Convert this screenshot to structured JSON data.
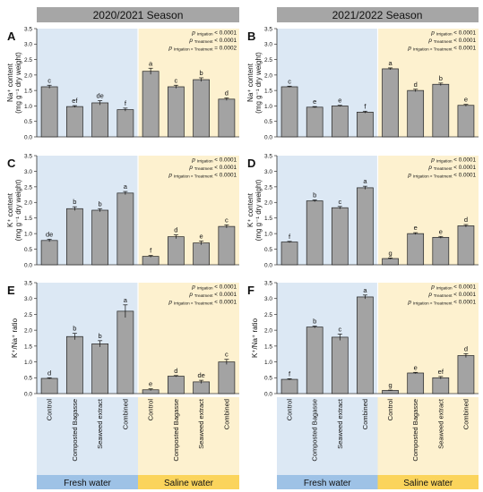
{
  "colors": {
    "header_bg": "#a6a6a6",
    "fresh_bg": "#dce8f4",
    "saline_bg": "#fdf1cf",
    "fresh_band": "#9ec2e6",
    "saline_band": "#fbd45c",
    "bar": "#a3a3a3",
    "bar_stroke": "#222222"
  },
  "seasons": [
    "2020/2021 Season",
    "2021/2022 Season"
  ],
  "water_labels": [
    "Fresh water",
    "Saline water"
  ],
  "x_categories": [
    "Control",
    "Composted Bagasse",
    "Seaweed extract",
    "Combined"
  ],
  "p_labels": {
    "irrigation": "Irrigation",
    "treatment": "Treatment",
    "interaction": "Irrigation × Treatment"
  },
  "chart_data": [
    {
      "panel": "A",
      "type": "bar",
      "season": "2020/2021 Season",
      "ylabel": "Na⁺ content",
      "ylabel2": "(mg g⁻¹ dry weight)",
      "ylim": [
        0,
        3.5
      ],
      "yticks": [
        "0.0",
        "0.5",
        "1.0",
        "1.5",
        "2.0",
        "2.5",
        "3.0",
        "3.5"
      ],
      "categories": [
        "Control",
        "Composted Bagasse",
        "Seaweed extract",
        "Combined",
        "Control",
        "Composted Bagasse",
        "Seaweed extract",
        "Combined"
      ],
      "values": [
        1.62,
        0.98,
        1.1,
        0.88,
        2.12,
        1.62,
        1.85,
        1.22
      ],
      "errors": [
        0.05,
        0.03,
        0.07,
        0.05,
        0.1,
        0.05,
        0.06,
        0.04
      ],
      "letters": [
        "c",
        "ef",
        "de",
        "f",
        "a",
        "c",
        "b",
        "d"
      ],
      "p_values": [
        "< 0.0001",
        "< 0.0001",
        "= 0.0002"
      ]
    },
    {
      "panel": "B",
      "type": "bar",
      "season": "2021/2022 Season",
      "ylabel": "Na⁺ content",
      "ylabel2": "(mg g⁻¹ dry weight)",
      "ylim": [
        0,
        3.5
      ],
      "yticks": [
        "0.0",
        "0.5",
        "1.0",
        "1.5",
        "2.0",
        "2.5",
        "3.0",
        "3.5"
      ],
      "categories": [
        "Control",
        "Composted Bagasse",
        "Seaweed extract",
        "Combined",
        "Control",
        "Composted Bagasse",
        "Seaweed extract",
        "Combined"
      ],
      "values": [
        1.62,
        0.96,
        1.0,
        0.8,
        2.2,
        1.5,
        1.7,
        1.02
      ],
      "errors": [
        0.02,
        0.02,
        0.02,
        0.03,
        0.03,
        0.04,
        0.04,
        0.03
      ],
      "letters": [
        "c",
        "e",
        "e",
        "f",
        "a",
        "d",
        "b",
        "e"
      ],
      "p_values": [
        "< 0.0001",
        "< 0.0001",
        "< 0.0001"
      ]
    },
    {
      "panel": "C",
      "type": "bar",
      "season": "2020/2021 Season",
      "ylabel": "K⁺ content",
      "ylabel2": "(mg g⁻¹ dry weight)",
      "ylim": [
        0,
        3.5
      ],
      "yticks": [
        "0.0",
        "0.5",
        "1.0",
        "1.5",
        "2.0",
        "2.5",
        "3.0",
        "3.5"
      ],
      "categories": [
        "Control",
        "Composted Bagasse",
        "Seaweed extract",
        "Combined",
        "Control",
        "Composted Bagasse",
        "Seaweed extract",
        "Combined"
      ],
      "values": [
        0.78,
        1.8,
        1.75,
        2.3,
        0.27,
        0.9,
        0.7,
        1.23
      ],
      "errors": [
        0.04,
        0.06,
        0.05,
        0.05,
        0.03,
        0.06,
        0.06,
        0.05
      ],
      "letters": [
        "de",
        "b",
        "b",
        "a",
        "f",
        "d",
        "e",
        "c"
      ],
      "p_values": [
        "< 0.0001",
        "< 0.0001",
        "< 0.0001"
      ]
    },
    {
      "panel": "D",
      "type": "bar",
      "season": "2021/2022 Season",
      "ylabel": "K⁺ content",
      "ylabel2": "(mg g⁻¹ dry weight)",
      "ylim": [
        0,
        3.5
      ],
      "yticks": [
        "0.0",
        "0.5",
        "1.0",
        "1.5",
        "2.0",
        "2.5",
        "3.0",
        "3.5"
      ],
      "categories": [
        "Control",
        "Composted Bagasse",
        "Seaweed extract",
        "Combined",
        "Control",
        "Composted Bagasse",
        "Seaweed extract",
        "Combined"
      ],
      "values": [
        0.73,
        2.05,
        1.83,
        2.47,
        0.2,
        1.0,
        0.88,
        1.25
      ],
      "errors": [
        0.02,
        0.03,
        0.04,
        0.05,
        0.02,
        0.03,
        0.03,
        0.04
      ],
      "letters": [
        "f",
        "b",
        "c",
        "a",
        "g",
        "e",
        "e",
        "d"
      ],
      "p_values": [
        "< 0.0001",
        "< 0.0001",
        "< 0.0001"
      ]
    },
    {
      "panel": "E",
      "type": "bar",
      "season": "2020/2021 Season",
      "ylabel": "K⁺/Na⁺ ratio",
      "ylabel2": "",
      "ylim": [
        0,
        3.5
      ],
      "yticks": [
        "0.0",
        "0.5",
        "1.0",
        "1.5",
        "2.0",
        "2.5",
        "3.0",
        "3.5"
      ],
      "categories": [
        "Control",
        "Composted Bagasse",
        "Seaweed extract",
        "Combined",
        "Control",
        "Composted Bagasse",
        "Seaweed extract",
        "Combined"
      ],
      "values": [
        0.48,
        1.8,
        1.57,
        2.6,
        0.12,
        0.55,
        0.37,
        1.0
      ],
      "errors": [
        0.02,
        0.1,
        0.1,
        0.2,
        0.03,
        0.02,
        0.05,
        0.08
      ],
      "letters": [
        "d",
        "b",
        "b",
        "a",
        "e",
        "d",
        "de",
        "c"
      ],
      "p_values": [
        "< 0.0001",
        "< 0.0001",
        "< 0.0001"
      ]
    },
    {
      "panel": "F",
      "type": "bar",
      "season": "2021/2022 Season",
      "ylabel": "K⁺/Na⁺ ratio",
      "ylabel2": "",
      "ylim": [
        0,
        3.5
      ],
      "yticks": [
        "0.0",
        "0.5",
        "1.0",
        "1.5",
        "2.0",
        "2.5",
        "3.0",
        "3.5"
      ],
      "categories": [
        "Control",
        "Composted Bagasse",
        "Seaweed extract",
        "Combined",
        "Control",
        "Composted Bagasse",
        "Seaweed extract",
        "Combined"
      ],
      "values": [
        0.45,
        2.1,
        1.78,
        3.05,
        0.1,
        0.65,
        0.5,
        1.2
      ],
      "errors": [
        0.02,
        0.03,
        0.1,
        0.06,
        0.01,
        0.02,
        0.04,
        0.06
      ],
      "letters": [
        "f",
        "b",
        "c",
        "a",
        "g",
        "e",
        "ef",
        "d"
      ],
      "p_values": [
        "< 0.0001",
        "< 0.0001",
        "< 0.0001"
      ]
    }
  ]
}
